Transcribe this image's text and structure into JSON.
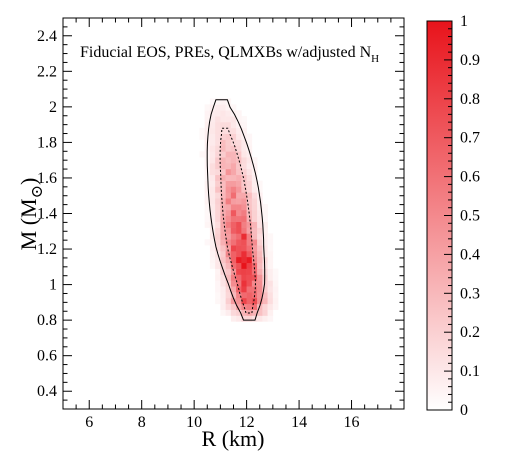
{
  "chart_data": {
    "type": "heatmap",
    "title": "",
    "annotation": {
      "main": "Fiducial EOS, PREs, QLMXBs w/adjusted N",
      "subscript": "H"
    },
    "xlabel": "R (km)",
    "ylabel": {
      "main": "M (M",
      "subscript": "⊙",
      "close": ")"
    },
    "xlim": [
      5,
      18
    ],
    "ylim": [
      0.3,
      2.5
    ],
    "x_ticks": [
      "6",
      "8",
      "10",
      "12",
      "14",
      "16"
    ],
    "x_tick_values": [
      6,
      8,
      10,
      12,
      14,
      16
    ],
    "y_ticks": [
      "0.4",
      "0.6",
      "0.8",
      "1",
      "1.2",
      "1.4",
      "1.6",
      "1.8",
      "2",
      "2.2",
      "2.4"
    ],
    "y_tick_values": [
      0.4,
      0.6,
      0.8,
      1.0,
      1.2,
      1.4,
      1.6,
      1.8,
      2.0,
      2.2,
      2.4
    ],
    "colorbar": {
      "min": 0,
      "max": 1,
      "ticks": [
        "0",
        "0.1",
        "0.2",
        "0.3",
        "0.4",
        "0.5",
        "0.6",
        "0.7",
        "0.8",
        "0.9",
        "1"
      ],
      "tick_values": [
        0,
        0.1,
        0.2,
        0.3,
        0.4,
        0.5,
        0.6,
        0.7,
        0.8,
        0.9,
        1.0
      ],
      "low_color": "#ffffff",
      "high_color": "#e8131b"
    },
    "density_ridge": [
      {
        "mass": 0.82,
        "radius": 12.1
      },
      {
        "mass": 1.0,
        "radius": 12.0
      },
      {
        "mass": 1.2,
        "radius": 11.75
      },
      {
        "mass": 1.4,
        "radius": 11.6
      },
      {
        "mass": 1.6,
        "radius": 11.45
      },
      {
        "mass": 1.8,
        "radius": 11.25
      },
      {
        "mass": 2.0,
        "radius": 11.05
      }
    ],
    "peak": {
      "radius": 11.9,
      "mass": 1.12,
      "value": 1.0
    },
    "contour_levels": [
      "1-sigma",
      "2-sigma"
    ],
    "contour_color": "#000000"
  }
}
